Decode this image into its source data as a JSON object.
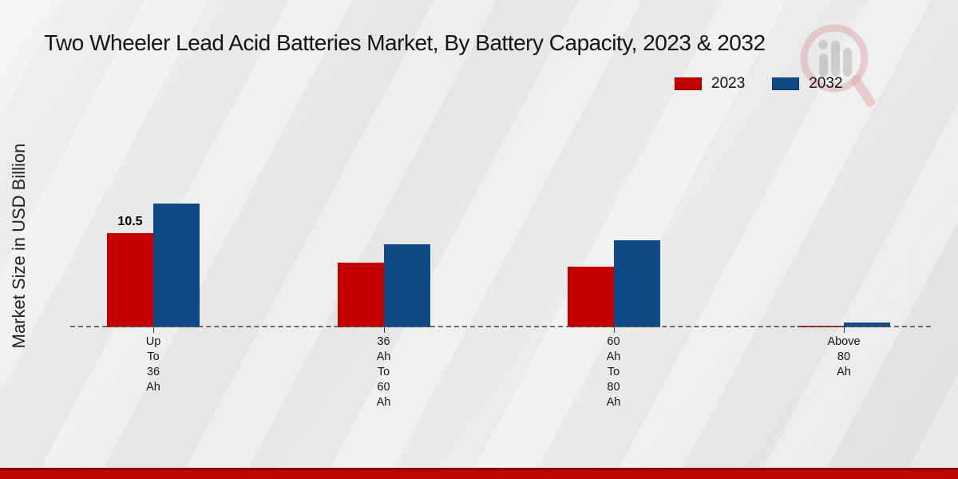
{
  "page": {
    "title": "Two Wheeler Lead Acid Batteries Market, By Battery Capacity, 2023 & 2032"
  },
  "watermark": {
    "icon": "magnifier-bar-chart-logo"
  },
  "chart_data": {
    "type": "bar",
    "title": "Two Wheeler Lead Acid Batteries Market, By Battery Capacity, 2023 & 2032",
    "xlabel": "",
    "ylabel": "Market Size in USD Billion",
    "categories": [
      "Up To 36 Ah",
      "36 Ah To 60 Ah",
      "60 Ah To 80 Ah",
      "Above 80 Ah"
    ],
    "category_label_lines": [
      [
        "Up",
        "To",
        "36",
        "Ah"
      ],
      [
        "36",
        "Ah",
        "To",
        "60",
        "Ah"
      ],
      [
        "60",
        "Ah",
        "To",
        "80",
        "Ah"
      ],
      [
        "Above",
        "80",
        "Ah"
      ]
    ],
    "series": [
      {
        "name": "2023",
        "color": "#c40000",
        "values": [
          10.5,
          7.2,
          6.8,
          0.2
        ],
        "data_labels": [
          "10.5",
          "",
          "",
          ""
        ]
      },
      {
        "name": "2032",
        "color": "#114b87",
        "values": [
          13.8,
          9.3,
          9.7,
          0.5
        ],
        "data_labels": [
          "",
          "",
          "",
          ""
        ]
      }
    ],
    "ylim": [
      0,
      15
    ],
    "grid": false,
    "baseline_style": "dashed",
    "legend_position": "top-right"
  },
  "colors": {
    "background": "#ebebeb",
    "series_2023": "#c40000",
    "series_2032": "#114b87",
    "axis_line": "#555555",
    "footer_bar": "#c00505",
    "text": "#1a1a1a"
  }
}
